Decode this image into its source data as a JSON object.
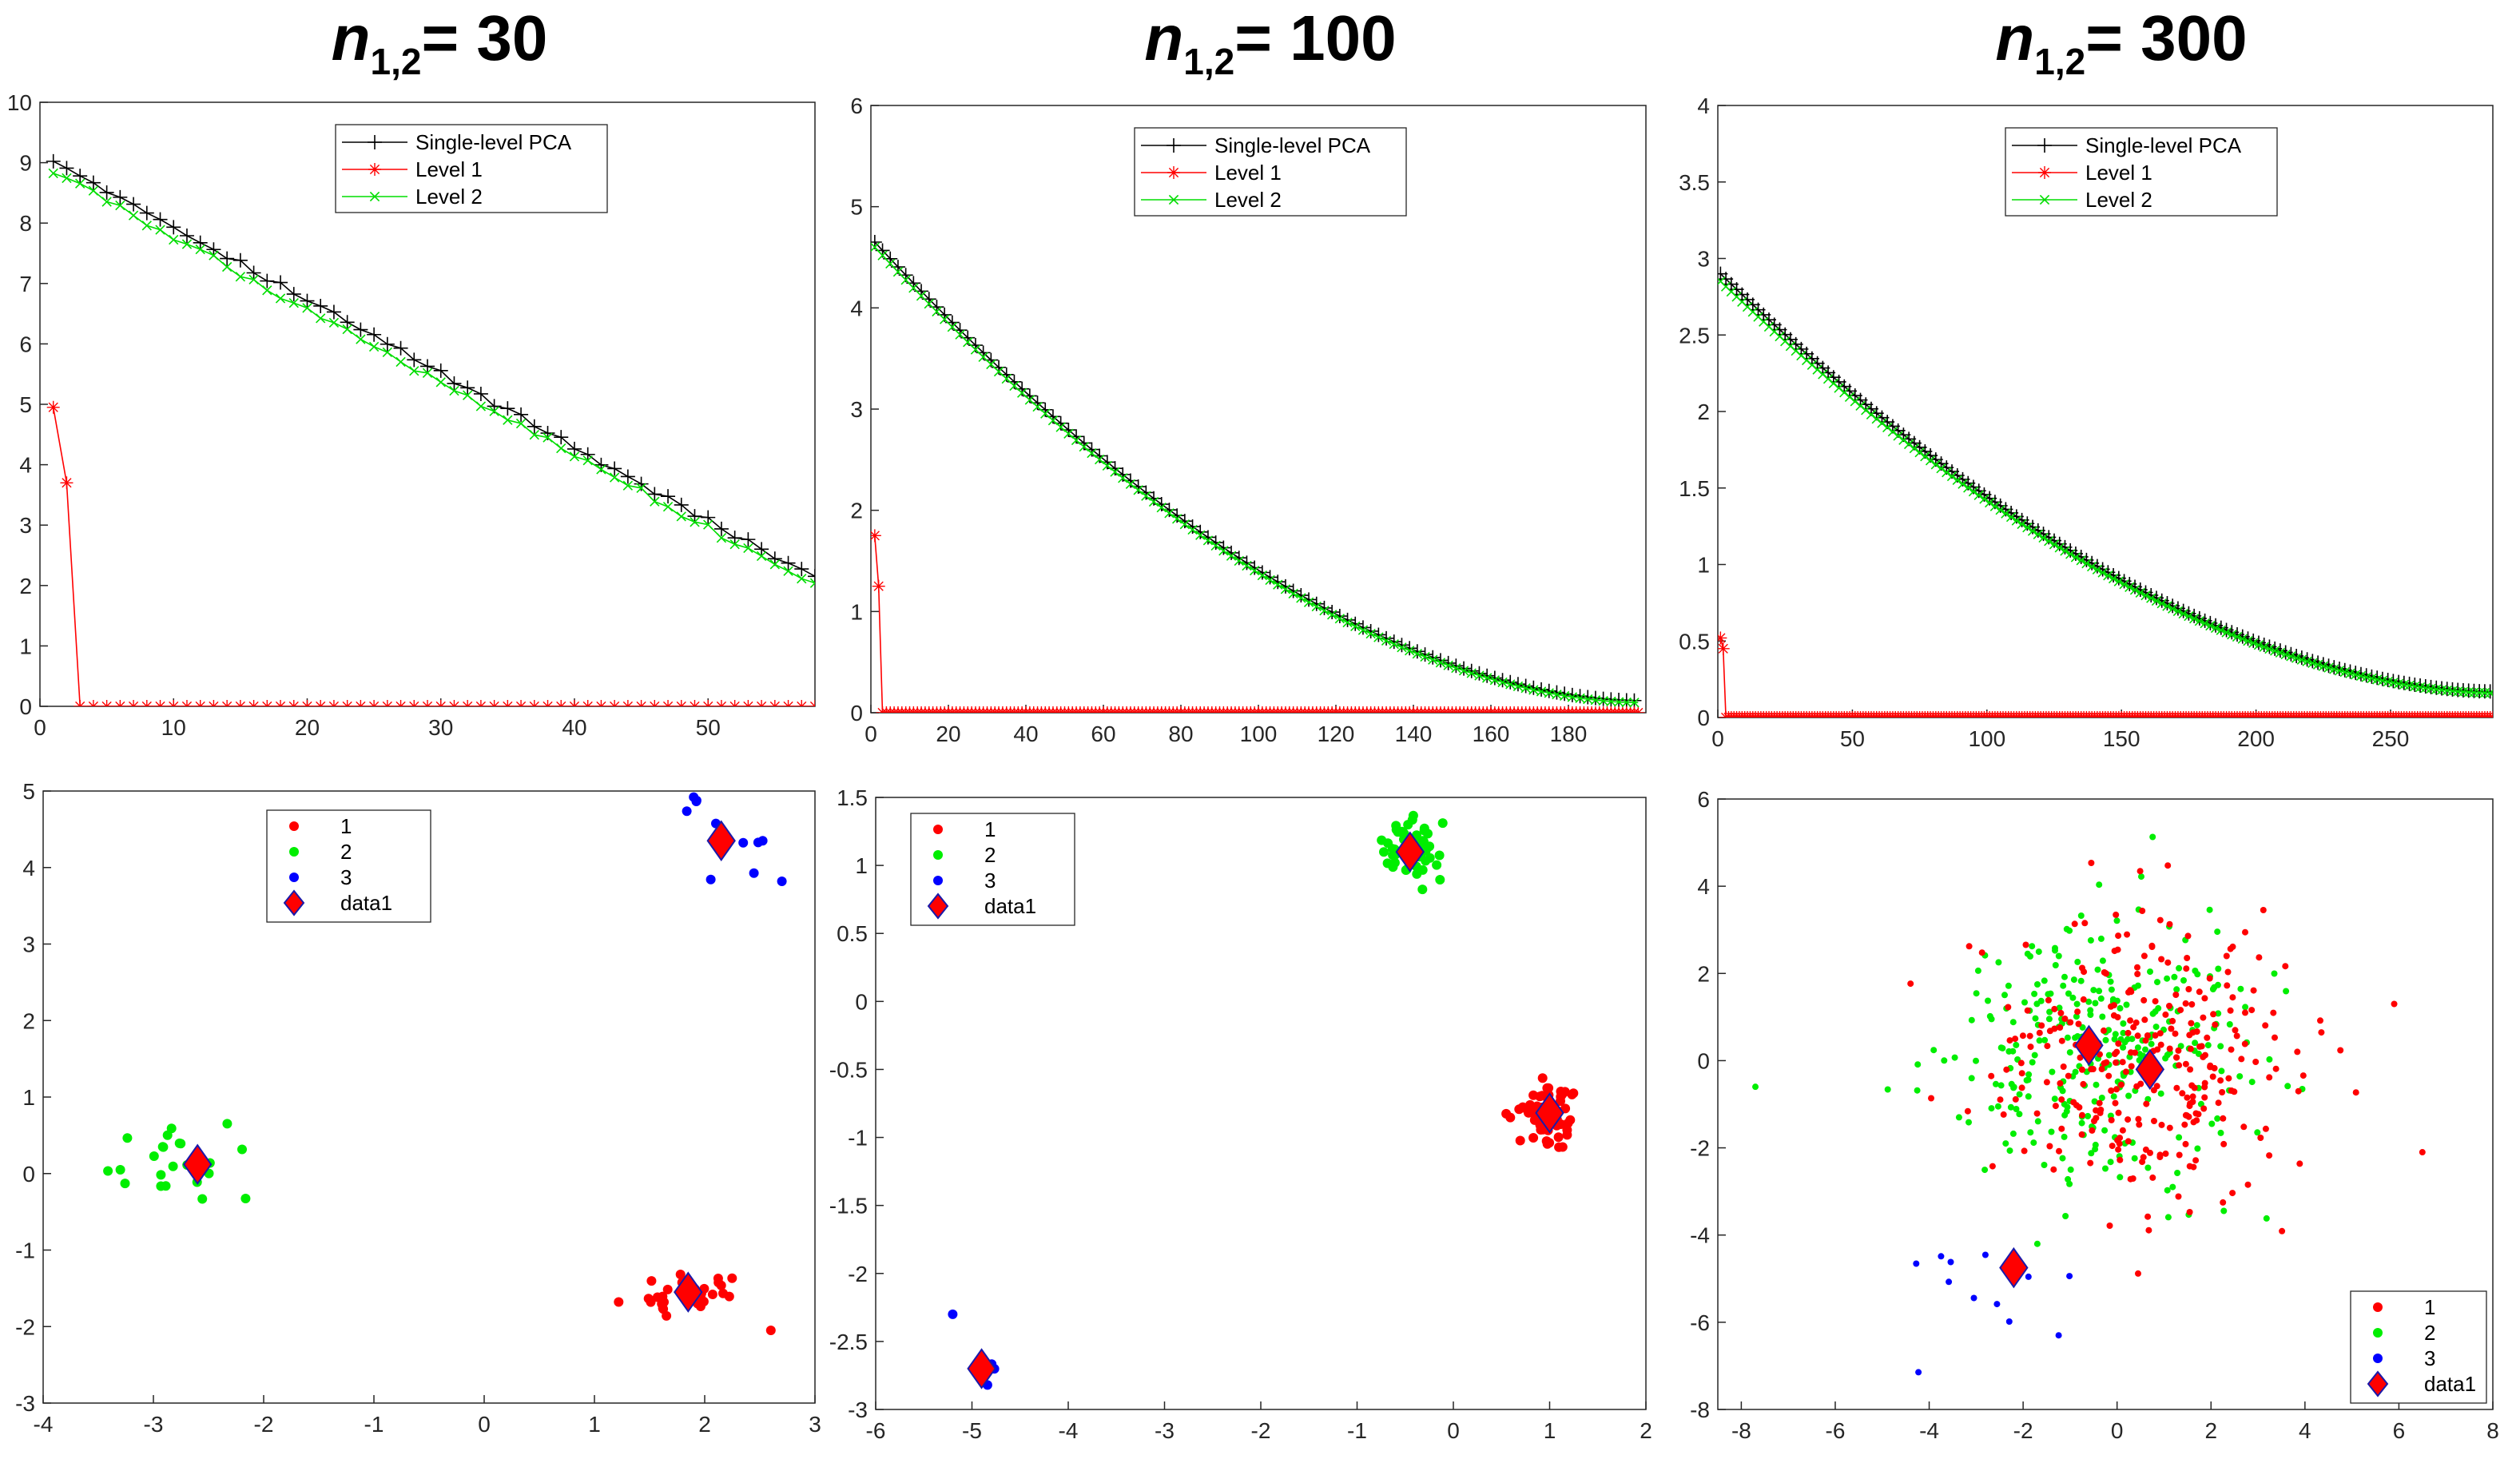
{
  "titles": [
    {
      "n": "n",
      "sub": "1,2",
      "rest": "= 30"
    },
    {
      "n": "n",
      "sub": "1,2",
      "rest": "= 100"
    },
    {
      "n": "n",
      "sub": "1,2",
      "rest": "= 300"
    }
  ],
  "chart_data": [
    {
      "type": "line",
      "id": "eig-30",
      "xlim": [
        0,
        58
      ],
      "ylim": [
        0,
        10
      ],
      "xticks": [
        0,
        10,
        20,
        30,
        40,
        50
      ],
      "yticks": [
        0,
        1,
        2,
        3,
        4,
        5,
        6,
        7,
        8,
        9,
        10
      ],
      "legend": "top-center",
      "series": [
        {
          "name": "Single-level PCA",
          "color": "#000000",
          "marker": "+",
          "shape": "linear",
          "n": 58,
          "start": 9.05,
          "end": 2.1
        },
        {
          "name": "Level 1",
          "color": "#ff0000",
          "marker": "*",
          "shape": "drop",
          "n": 58,
          "values_head": [
            4.95,
            3.7
          ],
          "rest": 0
        },
        {
          "name": "Level 2",
          "color": "#00dd00",
          "marker": "x",
          "shape": "linear",
          "n": 58,
          "start": 8.85,
          "end": 2.0
        }
      ]
    },
    {
      "type": "line",
      "id": "eig-100",
      "xlim": [
        0,
        200
      ],
      "ylim": [
        0,
        6
      ],
      "xticks": [
        0,
        20,
        40,
        60,
        80,
        100,
        120,
        140,
        160,
        180
      ],
      "yticks": [
        0,
        1,
        2,
        3,
        4,
        5,
        6
      ],
      "legend": "top-right",
      "series": [
        {
          "name": "Single-level PCA",
          "color": "#000000",
          "marker": "+",
          "shape": "decay",
          "n": 198,
          "start": 4.65,
          "end": 0.12
        },
        {
          "name": "Level 1",
          "color": "#ff0000",
          "marker": "*",
          "shape": "drop",
          "n": 198,
          "values_head": [
            1.75,
            1.25
          ],
          "rest": 0
        },
        {
          "name": "Level 2",
          "color": "#00dd00",
          "marker": "x",
          "shape": "decay",
          "n": 198,
          "start": 4.6,
          "end": 0.1
        }
      ]
    },
    {
      "type": "line",
      "id": "eig-300",
      "xlim": [
        0,
        288
      ],
      "ylim": [
        0,
        4
      ],
      "xticks": [
        0,
        50,
        100,
        150,
        200,
        250
      ],
      "yticks": [
        0,
        0.5,
        1,
        1.5,
        2,
        2.5,
        3,
        3.5,
        4
      ],
      "legend": "top-right",
      "series": [
        {
          "name": "Single-level PCA",
          "color": "#000000",
          "marker": "+",
          "shape": "decay",
          "n": 288,
          "start": 2.9,
          "end": 0.17
        },
        {
          "name": "Level 1",
          "color": "#ff0000",
          "marker": "*",
          "shape": "drop",
          "n": 288,
          "values_head": [
            0.52,
            0.45
          ],
          "rest": 0
        },
        {
          "name": "Level 2",
          "color": "#00dd00",
          "marker": "x",
          "shape": "decay",
          "n": 288,
          "start": 2.85,
          "end": 0.16
        }
      ]
    },
    {
      "type": "scatter",
      "id": "scores-30",
      "xlim": [
        -4,
        3
      ],
      "ylim": [
        -3,
        5
      ],
      "xticks": [
        -4,
        -3,
        -2,
        -1,
        0,
        1,
        2,
        3
      ],
      "yticks": [
        -3,
        -2,
        -1,
        0,
        1,
        2,
        3,
        4,
        5
      ],
      "legend": "top-left",
      "clusters": [
        {
          "name": "1",
          "color": "#ff0000",
          "center": [
            1.85,
            -1.55
          ],
          "spread": [
            0.25,
            0.18
          ],
          "count": 30,
          "seed": 11
        },
        {
          "name": "2",
          "color": "#00ee00",
          "center": [
            -2.6,
            0.1
          ],
          "spread": [
            0.3,
            0.25
          ],
          "count": 22,
          "seed": 23
        },
        {
          "name": "3",
          "color": "#0000ff",
          "center": [
            2.2,
            4.3
          ],
          "spread": [
            0.25,
            0.3
          ],
          "count": 9,
          "seed": 37
        }
      ],
      "extra_points": [
        {
          "cluster": "1",
          "x": 2.6,
          "y": -2.05
        },
        {
          "cluster": "2",
          "x": -3.3,
          "y": 0.05
        },
        {
          "cluster": "3",
          "x": 1.9,
          "y": 4.92
        },
        {
          "cluster": "3",
          "x": 2.7,
          "y": 3.82
        }
      ],
      "data1": {
        "name": "data1",
        "color": "#ff0000",
        "points": [
          [
            -2.6,
            0.12
          ],
          [
            1.85,
            -1.55
          ],
          [
            2.15,
            4.35
          ]
        ]
      }
    },
    {
      "type": "scatter",
      "id": "scores-100",
      "xlim": [
        -6,
        2
      ],
      "ylim": [
        -3,
        1.5
      ],
      "xticks": [
        -6,
        -5,
        -4,
        -3,
        -2,
        -1,
        0,
        1,
        2
      ],
      "yticks": [
        -3,
        -2.5,
        -2,
        -1.5,
        -1,
        -0.5,
        0,
        0.5,
        1,
        1.5
      ],
      "legend": "top-left",
      "clusters": [
        {
          "name": "1",
          "color": "#ff0000",
          "center": [
            1.0,
            -0.82
          ],
          "spread": [
            0.14,
            0.11
          ],
          "count": 70,
          "seed": 5
        },
        {
          "name": "2",
          "color": "#00ee00",
          "center": [
            -0.45,
            1.1
          ],
          "spread": [
            0.13,
            0.1
          ],
          "count": 70,
          "seed": 17
        },
        {
          "name": "3",
          "color": "#0000ff",
          "center": [
            -4.9,
            -2.72
          ],
          "spread": [
            0.08,
            0.1
          ],
          "count": 5,
          "seed": 41
        }
      ],
      "extra_points": [
        {
          "cluster": "3",
          "x": -5.2,
          "y": -2.3
        }
      ],
      "data1": {
        "name": "data1",
        "color": "#ff0000",
        "points": [
          [
            -0.45,
            1.1
          ],
          [
            1.0,
            -0.82
          ],
          [
            -4.9,
            -2.7
          ]
        ]
      }
    },
    {
      "type": "scatter",
      "id": "scores-300",
      "xlim": [
        -8.5,
        8
      ],
      "ylim": [
        -8,
        6
      ],
      "xticks": [
        -8,
        -6,
        -4,
        -2,
        0,
        2,
        4,
        6,
        8
      ],
      "yticks": [
        -8,
        -6,
        -4,
        -2,
        0,
        2,
        4,
        6
      ],
      "legend": "bottom-right",
      "clusters": [
        {
          "name": "1",
          "color": "#ff0000",
          "center": [
            0.7,
            -0.2
          ],
          "spread": [
            1.7,
            1.55
          ],
          "count": 290,
          "seed": 3
        },
        {
          "name": "2",
          "color": "#00ee00",
          "center": [
            -0.6,
            0.3
          ],
          "spread": [
            1.6,
            1.5
          ],
          "count": 290,
          "seed": 29
        },
        {
          "name": "3",
          "color": "#0000ff",
          "center": [
            -2.8,
            -5.0
          ],
          "spread": [
            1.1,
            0.9
          ],
          "count": 12,
          "seed": 53
        }
      ],
      "extra_points": [
        {
          "cluster": "2",
          "x": -7.7,
          "y": -0.6
        },
        {
          "cluster": "1",
          "x": 6.5,
          "y": -2.1
        },
        {
          "cluster": "1",
          "x": 5.9,
          "y": 1.3
        }
      ],
      "data1": {
        "name": "data1",
        "color": "#ff0000",
        "points": [
          [
            -0.6,
            0.35
          ],
          [
            0.7,
            -0.2
          ],
          [
            -2.2,
            -4.75
          ]
        ]
      }
    }
  ]
}
